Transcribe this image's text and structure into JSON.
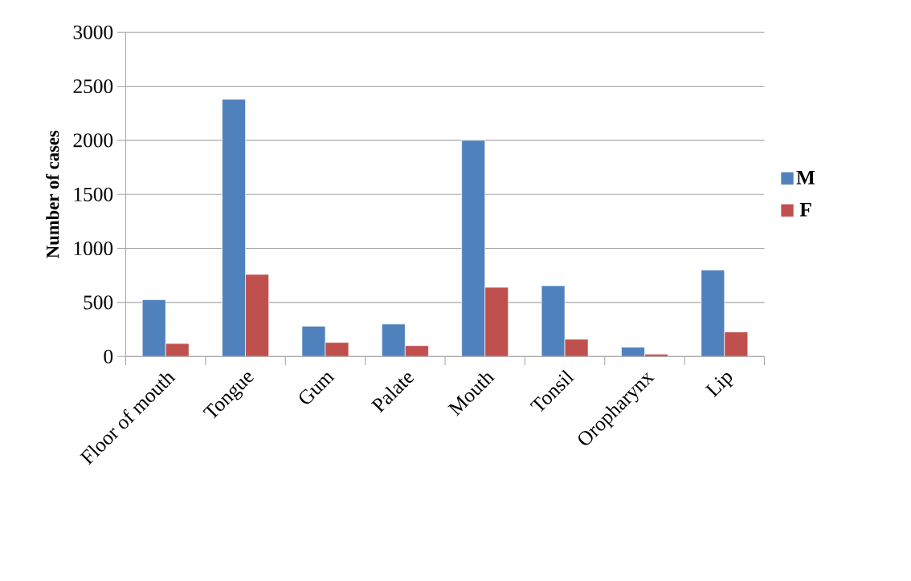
{
  "chart_data": {
    "type": "bar",
    "ylabel": "Number of cases",
    "categories": [
      "Floor of mouth",
      "Tongue",
      "Gum",
      "Palate",
      "Mouth",
      "Tonsil",
      "Oropharynx",
      "Lip"
    ],
    "series": [
      {
        "name": "M",
        "color": "#4f81bd",
        "values": [
          525,
          2380,
          280,
          300,
          2000,
          655,
          86,
          800
        ]
      },
      {
        "name": "F",
        "color": "#c0504d",
        "values": [
          120,
          760,
          130,
          100,
          640,
          160,
          22,
          227
        ]
      }
    ],
    "ylim": [
      0,
      3000
    ],
    "yticks": [
      0,
      500,
      1000,
      1500,
      2000,
      2500,
      3000
    ],
    "grid": "y",
    "legend": "right"
  }
}
